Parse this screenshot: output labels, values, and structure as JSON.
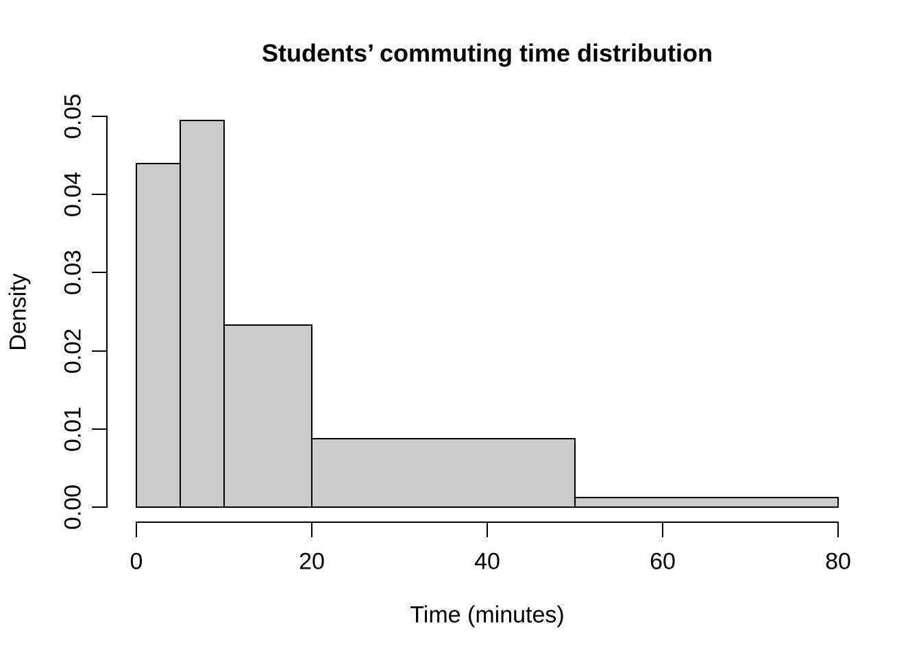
{
  "chart_data": {
    "type": "bar",
    "subtype": "histogram",
    "title": "Students’ commuting time distribution",
    "xlabel": "Time (minutes)",
    "ylabel": "Density",
    "xlim": [
      0,
      80
    ],
    "ylim": [
      0,
      0.05
    ],
    "grid": false,
    "legend": "none",
    "bins": [
      {
        "x0": 0,
        "x1": 5,
        "density": 0.044
      },
      {
        "x0": 5,
        "x1": 10,
        "density": 0.0495
      },
      {
        "x0": 10,
        "x1": 20,
        "density": 0.02325
      },
      {
        "x0": 20,
        "x1": 50,
        "density": 0.00875
      },
      {
        "x0": 50,
        "x1": 80,
        "density": 0.00125
      }
    ],
    "x_ticks": [
      {
        "value": 0,
        "label": "0"
      },
      {
        "value": 20,
        "label": "20"
      },
      {
        "value": 40,
        "label": "40"
      },
      {
        "value": 60,
        "label": "60"
      },
      {
        "value": 80,
        "label": "80"
      }
    ],
    "y_ticks": [
      {
        "value": 0.0,
        "label": "0.00"
      },
      {
        "value": 0.01,
        "label": "0.01"
      },
      {
        "value": 0.02,
        "label": "0.02"
      },
      {
        "value": 0.03,
        "label": "0.03"
      },
      {
        "value": 0.04,
        "label": "0.04"
      },
      {
        "value": 0.05,
        "label": "0.05"
      }
    ],
    "colors": {
      "bar_fill": "#cbcbcb",
      "bar_border": "#000000",
      "axis": "#000000",
      "text": "#000000",
      "background": "#ffffff"
    }
  }
}
